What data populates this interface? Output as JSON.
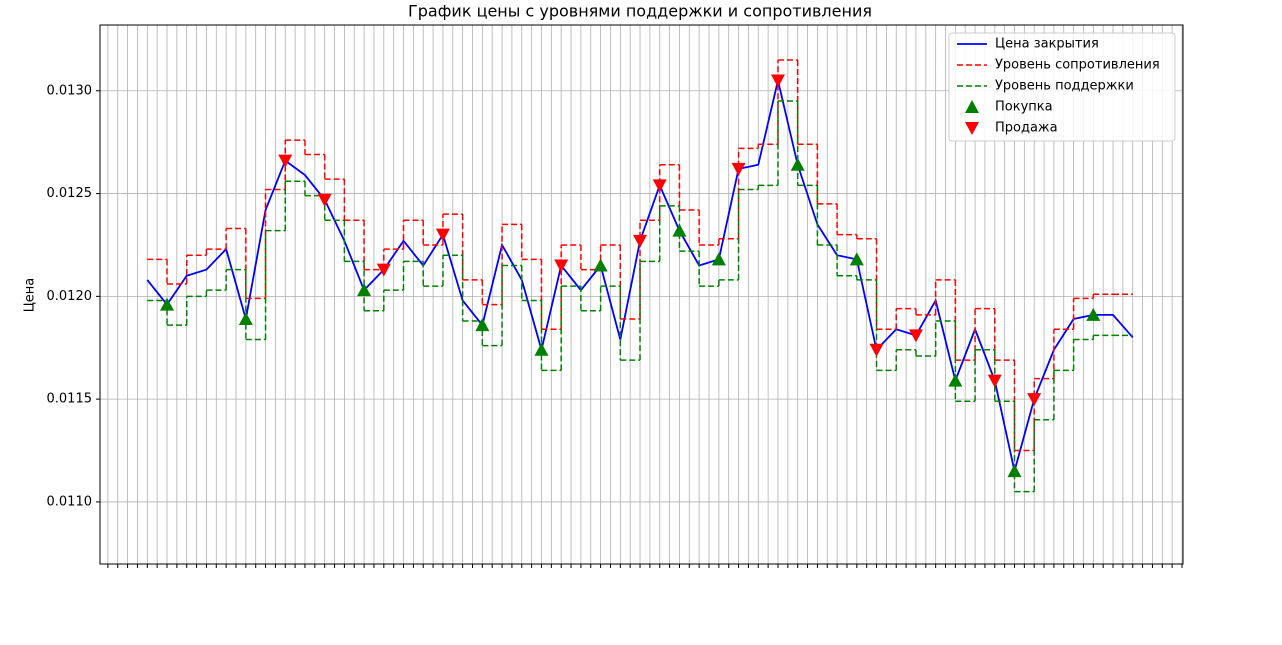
{
  "chart_data": {
    "type": "line",
    "title": "График цены с уровнями поддержки и сопротивления",
    "y_label": "Цена",
    "x": [
      0,
      2,
      4,
      6,
      8,
      10,
      12,
      14,
      16,
      18,
      20,
      22,
      24,
      26,
      28,
      30,
      32,
      34,
      36,
      38,
      40,
      42,
      44,
      46,
      48,
      50,
      52,
      54,
      56,
      58,
      60,
      62,
      64,
      66,
      68,
      70,
      72,
      74,
      76,
      78,
      80,
      82,
      84,
      86,
      88,
      90,
      92,
      94,
      96,
      98,
      100
    ],
    "xlim": [
      -4.8,
      105.1
    ],
    "xticks": [
      -4,
      -3,
      -2,
      -1,
      0,
      1,
      2,
      3,
      4,
      5,
      6,
      7,
      8,
      9,
      10,
      11,
      12,
      13,
      14,
      15,
      16,
      17,
      18,
      19,
      20,
      21,
      22,
      23,
      24,
      25,
      26,
      27,
      28,
      29,
      30,
      31,
      32,
      33,
      34,
      35,
      36,
      37,
      38,
      39,
      40,
      41,
      42,
      43,
      44,
      45,
      46,
      47,
      48,
      49,
      50,
      51,
      52,
      53,
      54,
      55,
      56,
      57,
      58,
      59,
      60,
      61,
      62,
      63,
      64,
      65,
      66,
      67,
      68,
      69,
      70,
      71,
      72,
      73,
      74,
      75,
      76,
      77,
      78,
      79,
      80,
      81,
      82,
      83,
      84,
      85,
      86,
      87,
      88,
      89,
      90,
      91,
      92,
      93,
      94,
      95,
      96,
      97,
      98,
      99,
      100,
      101,
      102,
      103,
      104,
      105
    ],
    "ylim": [
      0.010698,
      0.01332
    ],
    "yticks": [
      {
        "value": 0.011,
        "label": "0.0110"
      },
      {
        "value": 0.0115,
        "label": "0.0115"
      },
      {
        "value": 0.012,
        "label": "0.0120"
      },
      {
        "value": 0.0125,
        "label": "0.0125"
      },
      {
        "value": 0.013,
        "label": "0.0130"
      }
    ],
    "grid": true,
    "legend": "upper right",
    "series": [
      {
        "name": "Цена закрытия",
        "color": "#0000ff",
        "style": "solid",
        "values": [
          0.01208,
          0.01196,
          0.0121,
          0.01213,
          0.01223,
          0.01189,
          0.01242,
          0.01266,
          0.01259,
          0.01247,
          0.01227,
          0.01203,
          0.01213,
          0.01227,
          0.01215,
          0.0123,
          0.01198,
          0.01186,
          0.01225,
          0.01208,
          0.01174,
          0.01215,
          0.01203,
          0.01215,
          0.01179,
          0.01227,
          0.01254,
          0.01232,
          0.01215,
          0.01218,
          0.01262,
          0.01264,
          0.01305,
          0.01264,
          0.01235,
          0.0122,
          0.01218,
          0.01174,
          0.01184,
          0.01181,
          0.01198,
          0.01159,
          0.01184,
          0.01159,
          0.01115,
          0.0115,
          0.01174,
          0.01189,
          0.01191,
          0.01191,
          0.0118
        ]
      },
      {
        "name": "Уровень сопротивления",
        "color": "#ff0000",
        "style": "step",
        "x": [
          0,
          2,
          4,
          6,
          8,
          10,
          12,
          14,
          16,
          18,
          20,
          22,
          24,
          26,
          28,
          30,
          32,
          34,
          36,
          38,
          40,
          42,
          44,
          46,
          48,
          50,
          52,
          54,
          56,
          58,
          60,
          62,
          64,
          66,
          68,
          70,
          72,
          74,
          76,
          78,
          80,
          82,
          84,
          86,
          88,
          90,
          92,
          94,
          96,
          98
        ],
        "values": [
          0.01218,
          0.01206,
          0.0122,
          0.01223,
          0.01233,
          0.01199,
          0.01252,
          0.01276,
          0.01269,
          0.01257,
          0.01237,
          0.01213,
          0.01223,
          0.01237,
          0.01225,
          0.0124,
          0.01208,
          0.01196,
          0.01235,
          0.01218,
          0.01184,
          0.01225,
          0.01213,
          0.01225,
          0.01189,
          0.01237,
          0.01264,
          0.01242,
          0.01225,
          0.01228,
          0.01272,
          0.01274,
          0.01315,
          0.01274,
          0.01245,
          0.0123,
          0.01228,
          0.01184,
          0.01194,
          0.01191,
          0.01208,
          0.01169,
          0.01194,
          0.01169,
          0.01125,
          0.0116,
          0.01184,
          0.01199,
          0.01201,
          0.01201
        ]
      },
      {
        "name": "Уровень поддержки",
        "color": "#008000",
        "style": "step",
        "x": [
          0,
          2,
          4,
          6,
          8,
          10,
          12,
          14,
          16,
          18,
          20,
          22,
          24,
          26,
          28,
          30,
          32,
          34,
          36,
          38,
          40,
          42,
          44,
          46,
          48,
          50,
          52,
          54,
          56,
          58,
          60,
          62,
          64,
          66,
          68,
          70,
          72,
          74,
          76,
          78,
          80,
          82,
          84,
          86,
          88,
          90,
          92,
          94,
          96,
          98
        ],
        "values": [
          0.01198,
          0.01186,
          0.012,
          0.01203,
          0.01213,
          0.01179,
          0.01232,
          0.01256,
          0.01249,
          0.01237,
          0.01217,
          0.01193,
          0.01203,
          0.01217,
          0.01205,
          0.0122,
          0.01188,
          0.01176,
          0.01215,
          0.01198,
          0.01164,
          0.01205,
          0.01193,
          0.01205,
          0.01169,
          0.01217,
          0.01244,
          0.01222,
          0.01205,
          0.01208,
          0.01252,
          0.01254,
          0.01295,
          0.01254,
          0.01225,
          0.0121,
          0.01208,
          0.01164,
          0.01174,
          0.01171,
          0.01188,
          0.01149,
          0.01174,
          0.01149,
          0.01105,
          0.0114,
          0.01164,
          0.01179,
          0.01181,
          0.01181
        ]
      },
      {
        "name": "Покупка",
        "color": "#008000",
        "style": "up",
        "x": [
          2,
          10,
          22,
          34,
          40,
          46,
          54,
          58,
          66,
          72,
          82,
          88,
          96
        ],
        "values": [
          0.01196,
          0.01189,
          0.01203,
          0.01186,
          0.01174,
          0.01215,
          0.01232,
          0.01218,
          0.01264,
          0.01218,
          0.01159,
          0.01115,
          0.01191
        ]
      },
      {
        "name": "Продажа",
        "color": "#ff0000",
        "style": "down",
        "x": [
          14,
          18,
          24,
          30,
          42,
          50,
          52,
          60,
          64,
          74,
          78,
          86,
          90
        ],
        "values": [
          0.01266,
          0.01247,
          0.01213,
          0.0123,
          0.01215,
          0.01227,
          0.01254,
          0.01262,
          0.01305,
          0.01174,
          0.01181,
          0.01159,
          0.0115
        ]
      }
    ]
  }
}
